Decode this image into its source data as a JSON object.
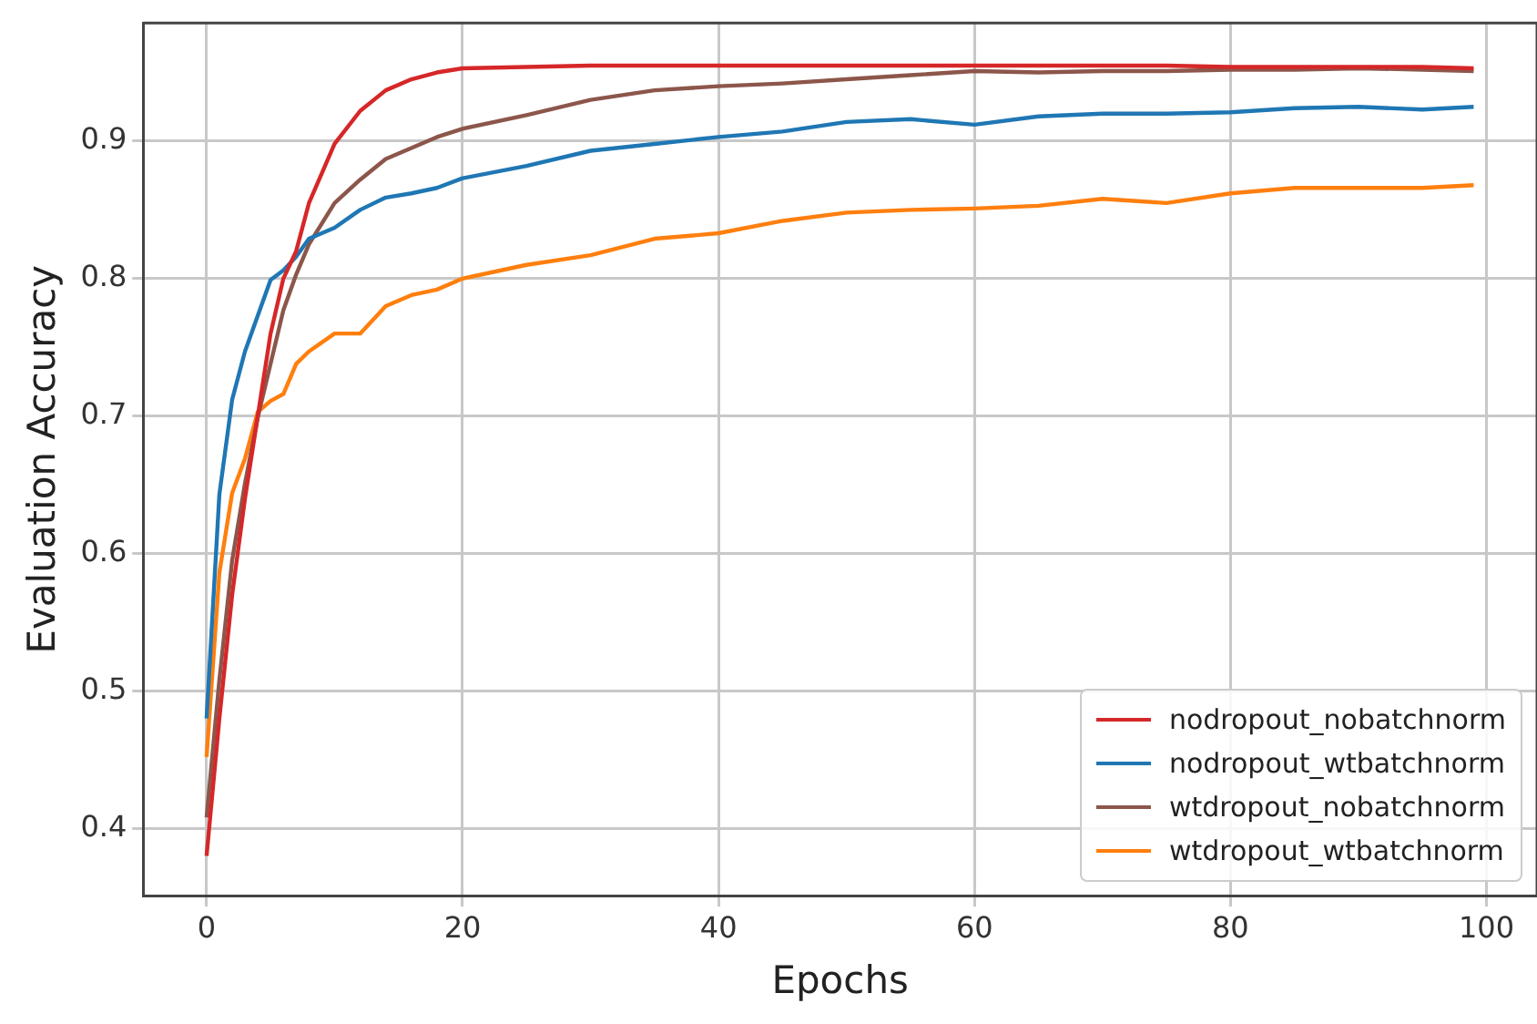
{
  "chart_data": {
    "type": "line",
    "xlabel": "Epochs",
    "ylabel": "Evaluation Accuracy",
    "x": [
      0,
      1,
      2,
      3,
      4,
      5,
      6,
      7,
      8,
      10,
      12,
      14,
      16,
      18,
      20,
      25,
      30,
      35,
      40,
      45,
      50,
      55,
      60,
      65,
      70,
      75,
      80,
      85,
      90,
      95,
      99
    ],
    "series": [
      {
        "name": "nodropout_nobatchnorm",
        "color": "#d62728",
        "values": [
          0.38,
          0.48,
          0.57,
          0.64,
          0.7,
          0.76,
          0.8,
          0.82,
          0.855,
          0.898,
          0.922,
          0.937,
          0.945,
          0.95,
          0.953,
          0.954,
          0.955,
          0.955,
          0.955,
          0.955,
          0.955,
          0.955,
          0.955,
          0.955,
          0.955,
          0.955,
          0.954,
          0.954,
          0.954,
          0.954,
          0.953
        ]
      },
      {
        "name": "nodropout_wtbatchnorm",
        "color": "#1f77b4",
        "values": [
          0.48,
          0.643,
          0.712,
          0.747,
          0.773,
          0.799,
          0.806,
          0.816,
          0.829,
          0.837,
          0.85,
          0.859,
          0.862,
          0.866,
          0.873,
          0.882,
          0.893,
          0.898,
          0.903,
          0.907,
          0.914,
          0.916,
          0.912,
          0.918,
          0.92,
          0.92,
          0.921,
          0.924,
          0.925,
          0.923,
          0.925
        ]
      },
      {
        "name": "wtdropout_nobatchnorm",
        "color": "#8c564b",
        "values": [
          0.408,
          0.508,
          0.595,
          0.651,
          0.699,
          0.738,
          0.777,
          0.803,
          0.825,
          0.855,
          0.872,
          0.887,
          0.895,
          0.903,
          0.909,
          0.919,
          0.93,
          0.937,
          0.94,
          0.942,
          0.945,
          0.948,
          0.951,
          0.95,
          0.951,
          0.951,
          0.952,
          0.952,
          0.953,
          0.952,
          0.951
        ]
      },
      {
        "name": "wtdropout_wtbatchnorm",
        "color": "#ff7f0e",
        "values": [
          0.452,
          0.586,
          0.644,
          0.669,
          0.703,
          0.711,
          0.716,
          0.738,
          0.747,
          0.76,
          0.76,
          0.78,
          0.788,
          0.792,
          0.8,
          0.81,
          0.817,
          0.829,
          0.833,
          0.842,
          0.848,
          0.85,
          0.851,
          0.853,
          0.858,
          0.855,
          0.862,
          0.866,
          0.866,
          0.866,
          0.868
        ]
      }
    ],
    "xlim": [
      -4.95,
      103.95
    ],
    "xticks": [
      0,
      20,
      40,
      60,
      80,
      100
    ],
    "ylim": [
      0.351,
      0.986
    ],
    "yticks": [
      0.4,
      0.5,
      0.6,
      0.7,
      0.8,
      0.9
    ],
    "grid": true,
    "legend": "bottom right",
    "marker": "none",
    "line_style": "solid"
  }
}
